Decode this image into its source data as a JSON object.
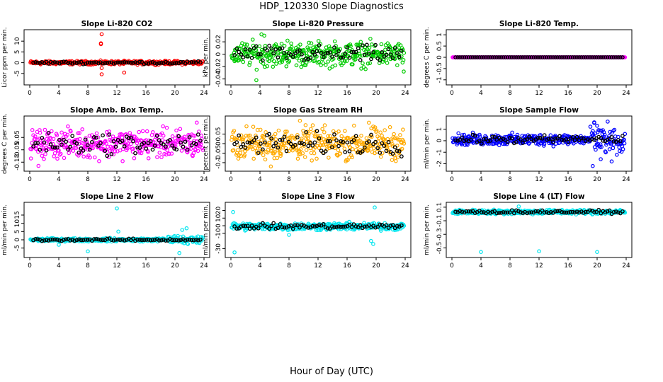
{
  "title": "HDP_120330  Slope Diagnostics",
  "xlabel": "Hour of Day (UTC)",
  "chart_data": [
    {
      "type": "scatter",
      "title": "Slope Li-820 CO2",
      "ylabel": "Licor ppm per min.",
      "xlim": [
        0,
        24
      ],
      "xticks": [
        0,
        4,
        8,
        12,
        16,
        20,
        24
      ],
      "ylim": [
        -9,
        14
      ],
      "yticks": [
        -5,
        0,
        5,
        10
      ],
      "raw_color": "#ff0000",
      "baseline": 0,
      "spread": 0.5,
      "outliers": [
        [
          9.9,
          13.2
        ],
        [
          9.8,
          9
        ],
        [
          9.8,
          8.6
        ],
        [
          9.9,
          -2.5
        ],
        [
          9.9,
          -5.4
        ],
        [
          13,
          -4.6
        ],
        [
          16.5,
          0.7
        ]
      ]
    },
    {
      "type": "scatter",
      "title": "Slope Li-820 Pressure",
      "ylabel": "kPa per min.",
      "xlim": [
        0,
        24
      ],
      "xticks": [
        0,
        4,
        8,
        12,
        16,
        20,
        24
      ],
      "ylim": [
        -0.045,
        0.035
      ],
      "yticks": [
        -0.04,
        -0.02,
        0.0,
        0.02
      ],
      "raw_color": "#00cc00",
      "baseline": 0.0,
      "spread": 0.012,
      "outliers": [
        [
          3.5,
          -0.042
        ],
        [
          4.2,
          0.032
        ],
        [
          4.6,
          0.03
        ],
        [
          7.8,
          0.022
        ],
        [
          23.8,
          -0.028
        ]
      ]
    },
    {
      "type": "scatter",
      "title": "Slope Li-820 Temp.",
      "ylabel": "degrees C per min.",
      "xlim": [
        0,
        24
      ],
      "xticks": [
        0,
        4,
        8,
        12,
        16,
        20,
        24
      ],
      "ylim": [
        -1.1,
        1.1
      ],
      "yticks": [
        -1.0,
        -0.5,
        0.0,
        0.5,
        1.0
      ],
      "raw_color": "#ff00ff",
      "baseline": 0.0,
      "spread": 0.0,
      "outliers": []
    },
    {
      "type": "scatter",
      "title": "Slope Amb. Box Temp.",
      "ylabel": "degrees C per min.",
      "xlim": [
        0,
        24
      ],
      "xticks": [
        0,
        4,
        8,
        12,
        16,
        20,
        24
      ],
      "ylim": [
        -0.2,
        0.2
      ],
      "yticks": [
        -0.15,
        -0.05,
        0.05
      ],
      "raw_color": "#ff00ff",
      "baseline": 0.0,
      "spread": 0.07,
      "outliers": [
        [
          1.2,
          -0.18
        ],
        [
          23,
          0.17
        ]
      ]
    },
    {
      "type": "scatter",
      "title": "Slope Gas Stream RH",
      "ylabel": "percent per min.",
      "xlim": [
        0,
        24
      ],
      "xticks": [
        0,
        4,
        8,
        12,
        16,
        20,
        24
      ],
      "ylim": [
        -0.13,
        0.13
      ],
      "yticks": [
        -0.1,
        -0.05,
        0.0,
        0.05
      ],
      "raw_color": "#ffaa00",
      "baseline": 0.0,
      "spread": 0.05,
      "outliers": [
        [
          5.5,
          -0.12
        ],
        [
          9.5,
          0.12
        ],
        [
          19,
          0.11
        ]
      ]
    },
    {
      "type": "scatter",
      "title": "Slope Sample Flow",
      "ylabel": "ml/min per min.",
      "xlim": [
        0,
        24
      ],
      "xticks": [
        0,
        4,
        8,
        12,
        16,
        20,
        24
      ],
      "ylim": [
        -2.4,
        1.9
      ],
      "yticks": [
        -2,
        -1,
        0,
        1
      ],
      "raw_color": "#0000ff",
      "baseline": 0.1,
      "spread": 0.3,
      "outliers": [
        [
          19.4,
          -2.2
        ],
        [
          19.6,
          1.6
        ],
        [
          20,
          1.3
        ],
        [
          20.5,
          -1.6
        ],
        [
          22,
          -1.8
        ]
      ]
    },
    {
      "type": "scatter",
      "title": "Slope Line 2 Flow",
      "ylabel": "ml/min per min.",
      "xlim": [
        0,
        24
      ],
      "xticks": [
        0,
        4,
        8,
        12,
        16,
        20,
        24
      ],
      "ylim": [
        -9,
        21
      ],
      "yticks": [
        -5,
        0,
        5,
        10,
        15
      ],
      "raw_color": "#00e5ee",
      "baseline": 0,
      "spread": 0.6,
      "outliers": [
        [
          12,
          19
        ],
        [
          8,
          -7
        ],
        [
          12.2,
          5
        ],
        [
          4,
          -3
        ],
        [
          20.6,
          -8
        ],
        [
          21,
          6
        ],
        [
          21.6,
          7
        ]
      ]
    },
    {
      "type": "scatter",
      "title": "Slope Line 3 Flow",
      "ylabel": "ml/min per min.",
      "xlim": [
        0,
        24
      ],
      "xticks": [
        0,
        4,
        8,
        12,
        16,
        20,
        24
      ],
      "ylim": [
        -38,
        27
      ],
      "yticks": [
        -30,
        -10,
        0,
        10,
        20
      ],
      "raw_color": "#00e5ee",
      "baseline": -1,
      "spread": 3,
      "outliers": [
        [
          0.5,
          -35
        ],
        [
          0.3,
          18
        ],
        [
          19.8,
          24
        ],
        [
          19.3,
          -20
        ],
        [
          19.6,
          -24
        ],
        [
          8,
          -12
        ],
        [
          17,
          -5
        ]
      ]
    },
    {
      "type": "scatter",
      "title": "Slope Line 4 (LT) Flow",
      "ylabel": "ml/min per min.",
      "xlim": [
        0,
        24
      ],
      "xticks": [
        0,
        4,
        8,
        12,
        16,
        20,
        24
      ],
      "ylim": [
        -0.6,
        0.13
      ],
      "yticks": [
        -0.5,
        -0.3,
        -0.1,
        0.1
      ],
      "raw_color": "#00e5ee",
      "baseline": 0.03,
      "spread": 0.02,
      "outliers": [
        [
          4,
          -0.56
        ],
        [
          12,
          -0.55
        ],
        [
          20,
          -0.56
        ],
        [
          9.2,
          0.11
        ]
      ]
    }
  ]
}
